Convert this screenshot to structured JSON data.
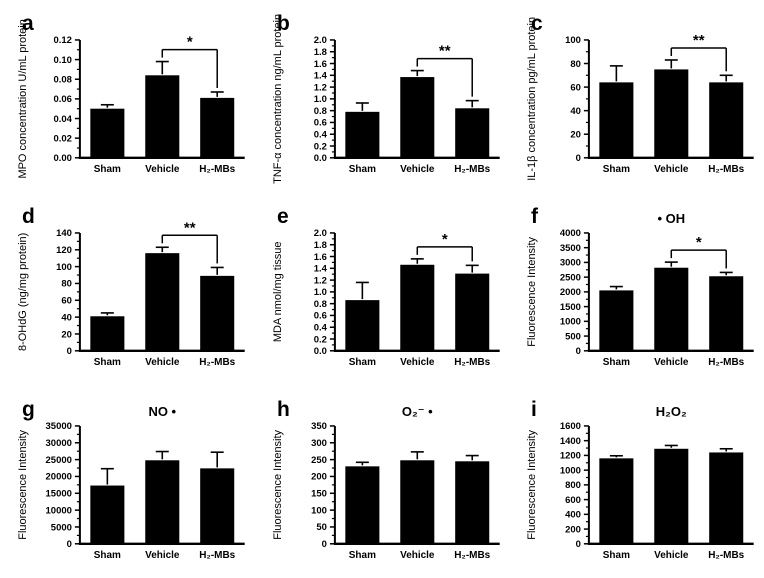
{
  "figure": {
    "background_color": "#ffffff",
    "bar_color": "#000000",
    "axis_color": "#000000",
    "categories": [
      "Sham",
      "Vehicle",
      "H₂-MBs"
    ]
  },
  "chart_data": [
    {
      "panel": "a",
      "type": "bar",
      "title": "",
      "ylabel": "MPO concentration U/mL protein",
      "categories": [
        "Sham",
        "Vehicle",
        "H₂-MBs"
      ],
      "values": [
        0.05,
        0.084,
        0.061
      ],
      "errors": [
        0.004,
        0.014,
        0.006
      ],
      "ylim": [
        0,
        0.12
      ],
      "yticks": [
        "0.00",
        "0.02",
        "0.04",
        "0.06",
        "0.08",
        "0.10",
        "0.12"
      ],
      "significance": {
        "pair": [
          1,
          2
        ],
        "label": "*"
      }
    },
    {
      "panel": "b",
      "type": "bar",
      "title": "",
      "ylabel": "TNF-α concentration ng/mL protein",
      "categories": [
        "Sham",
        "Vehicle",
        "H₂-MBs"
      ],
      "values": [
        0.78,
        1.37,
        0.84
      ],
      "errors": [
        0.15,
        0.11,
        0.13
      ],
      "ylim": [
        0,
        2.0
      ],
      "yticks": [
        "0.0",
        "0.2",
        "0.4",
        "0.6",
        "0.8",
        "1.0",
        "1.2",
        "1.4",
        "1.6",
        "1.8",
        "2.0"
      ],
      "significance": {
        "pair": [
          1,
          2
        ],
        "label": "**"
      }
    },
    {
      "panel": "c",
      "type": "bar",
      "title": "",
      "ylabel": "IL-1β concentration pg/mL protein",
      "categories": [
        "Sham",
        "Vehicle",
        "H₂-MBs"
      ],
      "values": [
        64,
        75,
        64
      ],
      "errors": [
        14,
        8,
        6
      ],
      "ylim": [
        0,
        100
      ],
      "yticks": [
        "0",
        "20",
        "40",
        "60",
        "80",
        "100"
      ],
      "significance": {
        "pair": [
          1,
          2
        ],
        "label": "**"
      }
    },
    {
      "panel": "d",
      "type": "bar",
      "title": "",
      "ylabel": "8-OHdG (ng/mg protein)",
      "categories": [
        "Sham",
        "Vehicle",
        "H₂-MBs"
      ],
      "values": [
        41,
        116,
        89
      ],
      "errors": [
        4,
        7,
        10
      ],
      "ylim": [
        0,
        140
      ],
      "yticks": [
        "0",
        "20",
        "40",
        "60",
        "80",
        "100",
        "120",
        "140"
      ],
      "significance": {
        "pair": [
          1,
          2
        ],
        "label": "**"
      }
    },
    {
      "panel": "e",
      "type": "bar",
      "title": "",
      "ylabel": "MDA nmol/mg tissue",
      "categories": [
        "Sham",
        "Vehicle",
        "H₂-MBs"
      ],
      "values": [
        0.86,
        1.46,
        1.31
      ],
      "errors": [
        0.3,
        0.1,
        0.14
      ],
      "ylim": [
        0,
        2.0
      ],
      "yticks": [
        "0.0",
        "0.2",
        "0.4",
        "0.6",
        "0.8",
        "1.0",
        "1.2",
        "1.4",
        "1.6",
        "1.8",
        "2.0"
      ],
      "significance": {
        "pair": [
          1,
          2
        ],
        "label": "*"
      }
    },
    {
      "panel": "f",
      "type": "bar",
      "title": "• OH",
      "ylabel": "Fluorescence Intensity",
      "categories": [
        "Sham",
        "Vehicle",
        "H₂-MBs"
      ],
      "values": [
        2050,
        2820,
        2530
      ],
      "errors": [
        130,
        190,
        130
      ],
      "ylim": [
        0,
        4000
      ],
      "yticks": [
        "0",
        "500",
        "1000",
        "1500",
        "2000",
        "2500",
        "3000",
        "3500",
        "4000"
      ],
      "significance": {
        "pair": [
          1,
          2
        ],
        "label": "*"
      }
    },
    {
      "panel": "g",
      "type": "bar",
      "title": "NO •",
      "ylabel": "Fluorescence Intensity",
      "categories": [
        "Sham",
        "Vehicle",
        "H₂-MBs"
      ],
      "values": [
        17300,
        24800,
        22400
      ],
      "errors": [
        5000,
        2600,
        4800
      ],
      "ylim": [
        0,
        35000
      ],
      "yticks": [
        "0",
        "5000",
        "10000",
        "15000",
        "20000",
        "25000",
        "30000",
        "35000"
      ],
      "significance": null
    },
    {
      "panel": "h",
      "type": "bar",
      "title": "O₂⁻ •",
      "ylabel": "Fluorescence Intensity",
      "categories": [
        "Sham",
        "Vehicle",
        "H₂-MBs"
      ],
      "values": [
        230,
        248,
        245
      ],
      "errors": [
        12,
        25,
        17
      ],
      "ylim": [
        0,
        350
      ],
      "yticks": [
        "0",
        "50",
        "100",
        "150",
        "200",
        "250",
        "300",
        "350"
      ],
      "significance": null
    },
    {
      "panel": "i",
      "type": "bar",
      "title": "H₂O₂",
      "ylabel": "Fluorescence Intensity",
      "categories": [
        "Sham",
        "Vehicle",
        "H₂-MBs"
      ],
      "values": [
        1160,
        1290,
        1240
      ],
      "errors": [
        35,
        45,
        50
      ],
      "ylim": [
        0,
        1600
      ],
      "yticks": [
        "0",
        "200",
        "400",
        "600",
        "800",
        "1000",
        "1200",
        "1400",
        "1600"
      ],
      "significance": null
    }
  ]
}
